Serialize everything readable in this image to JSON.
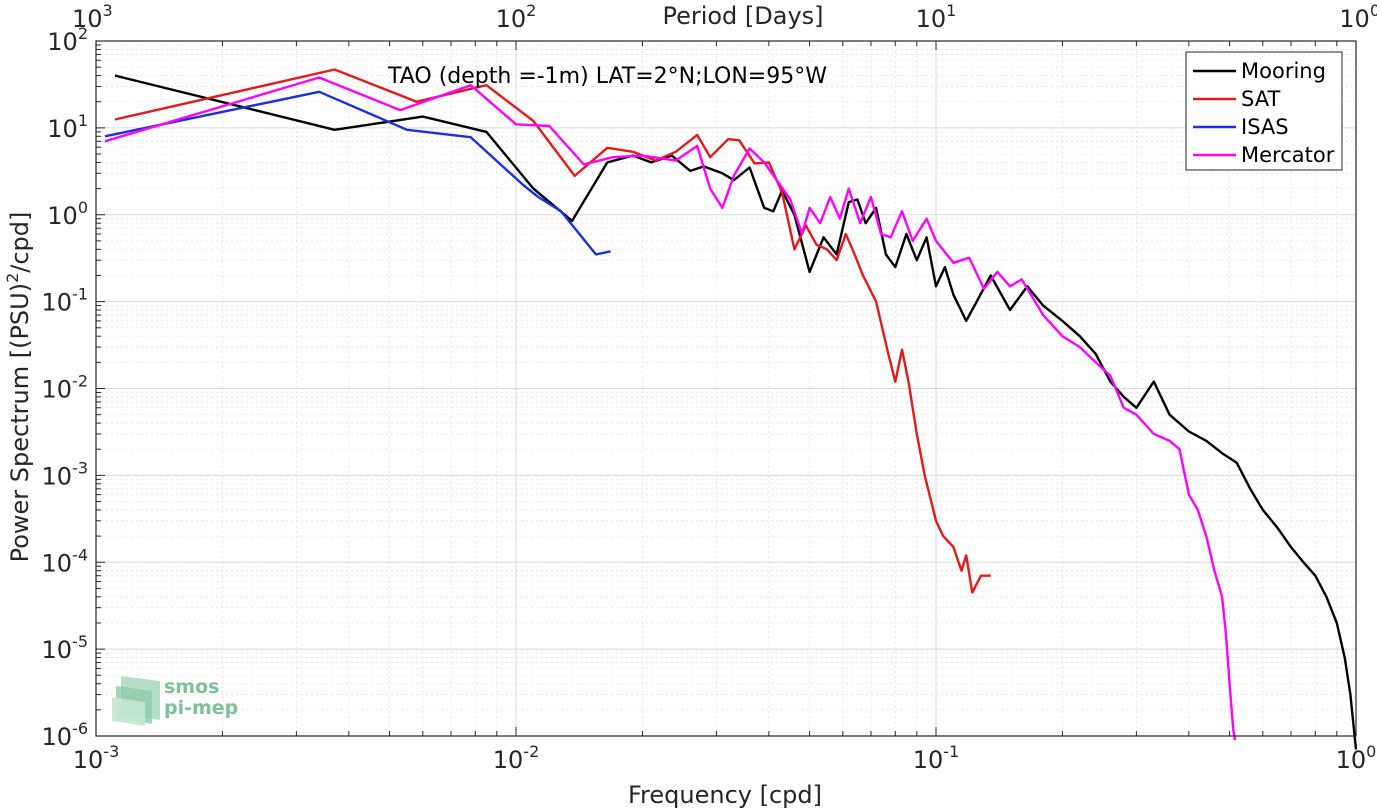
{
  "chart_data": {
    "type": "line",
    "x_scale": "log",
    "y_scale": "log",
    "xlim": [
      0.001,
      1
    ],
    "ylim": [
      1e-06,
      100
    ],
    "xlabel": "Frequency [cpd]",
    "ylabel": "Power Spectrum [(PSU)",
    "ylabel_sup": "2",
    "ylabel_tail": "/cpd]",
    "top_axis_label": "Period [Days]",
    "annotation": "TAO (depth =-1m) LAT=2°N;LON=95°W",
    "grid": true,
    "legend_position": "top-right",
    "x_ticks": [
      {
        "base": "10",
        "exp": "-3",
        "value": 0.001
      },
      {
        "base": "10",
        "exp": "-2",
        "value": 0.01
      },
      {
        "base": "10",
        "exp": "-1",
        "value": 0.1
      },
      {
        "base": "10",
        "exp": "0",
        "value": 1
      }
    ],
    "top_ticks": [
      {
        "base": "10",
        "exp": "3",
        "freq": 0.001
      },
      {
        "base": "10",
        "exp": "2",
        "freq": 0.01
      },
      {
        "base": "10",
        "exp": "1",
        "freq": 0.1
      },
      {
        "base": "10",
        "exp": "0",
        "freq": 1
      }
    ],
    "y_ticks": [
      {
        "base": "10",
        "exp": "2",
        "value": 100
      },
      {
        "base": "10",
        "exp": "1",
        "value": 10
      },
      {
        "base": "10",
        "exp": "0",
        "value": 1
      },
      {
        "base": "10",
        "exp": "-1",
        "value": 0.1
      },
      {
        "base": "10",
        "exp": "-2",
        "value": 0.01
      },
      {
        "base": "10",
        "exp": "-3",
        "value": 0.001
      },
      {
        "base": "10",
        "exp": "-4",
        "value": 0.0001
      },
      {
        "base": "10",
        "exp": "-5",
        "value": 1e-05
      },
      {
        "base": "10",
        "exp": "-6",
        "value": 1e-06
      }
    ],
    "series": [
      {
        "name": "Mooring",
        "color": "#000000",
        "points": [
          [
            0.00111,
            40
          ],
          [
            0.0037,
            9.5
          ],
          [
            0.006,
            13.5
          ],
          [
            0.0085,
            9
          ],
          [
            0.011,
            2
          ],
          [
            0.0136,
            0.85
          ],
          [
            0.0165,
            4
          ],
          [
            0.019,
            4.8
          ],
          [
            0.021,
            4.0
          ],
          [
            0.0235,
            4.8
          ],
          [
            0.026,
            3.2
          ],
          [
            0.028,
            3.6
          ],
          [
            0.031,
            3
          ],
          [
            0.033,
            2.5
          ],
          [
            0.036,
            3.5
          ],
          [
            0.039,
            1.2
          ],
          [
            0.041,
            1.1
          ],
          [
            0.043,
            1.9
          ],
          [
            0.046,
            1.0
          ],
          [
            0.05,
            0.22
          ],
          [
            0.054,
            0.55
          ],
          [
            0.058,
            0.35
          ],
          [
            0.062,
            1.4
          ],
          [
            0.065,
            1.5
          ],
          [
            0.068,
            0.8
          ],
          [
            0.072,
            1.2
          ],
          [
            0.076,
            0.35
          ],
          [
            0.08,
            0.25
          ],
          [
            0.085,
            0.6
          ],
          [
            0.09,
            0.3
          ],
          [
            0.095,
            0.55
          ],
          [
            0.1,
            0.15
          ],
          [
            0.105,
            0.25
          ],
          [
            0.11,
            0.12
          ],
          [
            0.118,
            0.06
          ],
          [
            0.125,
            0.1
          ],
          [
            0.135,
            0.2
          ],
          [
            0.15,
            0.08
          ],
          [
            0.165,
            0.15
          ],
          [
            0.18,
            0.09
          ],
          [
            0.2,
            0.06
          ],
          [
            0.22,
            0.04
          ],
          [
            0.24,
            0.025
          ],
          [
            0.26,
            0.012
          ],
          [
            0.28,
            0.008
          ],
          [
            0.3,
            0.006
          ],
          [
            0.33,
            0.012
          ],
          [
            0.36,
            0.005
          ],
          [
            0.4,
            0.0032
          ],
          [
            0.44,
            0.0025
          ],
          [
            0.48,
            0.0018
          ],
          [
            0.52,
            0.0014
          ],
          [
            0.56,
            0.0007
          ],
          [
            0.6,
            0.0004
          ],
          [
            0.65,
            0.00025
          ],
          [
            0.7,
            0.00015
          ],
          [
            0.75,
            0.0001
          ],
          [
            0.8,
            7e-05
          ],
          [
            0.85,
            4e-05
          ],
          [
            0.9,
            2e-05
          ],
          [
            0.94,
            8e-06
          ],
          [
            0.97,
            3e-06
          ],
          [
            1.0,
            7e-07
          ]
        ]
      },
      {
        "name": "SAT",
        "color": "#e31a1c",
        "points": [
          [
            0.00111,
            12.5
          ],
          [
            0.0037,
            47
          ],
          [
            0.0058,
            20
          ],
          [
            0.0085,
            31
          ],
          [
            0.011,
            12
          ],
          [
            0.0138,
            2.8
          ],
          [
            0.0165,
            5.9
          ],
          [
            0.019,
            5.3
          ],
          [
            0.0215,
            4.2
          ],
          [
            0.024,
            5.3
          ],
          [
            0.027,
            8.3
          ],
          [
            0.029,
            4.6
          ],
          [
            0.032,
            7.4
          ],
          [
            0.034,
            7.2
          ],
          [
            0.037,
            3.9
          ],
          [
            0.04,
            4
          ],
          [
            0.043,
            1.8
          ],
          [
            0.046,
            0.4
          ],
          [
            0.049,
            0.75
          ],
          [
            0.052,
            0.45
          ],
          [
            0.055,
            0.4
          ],
          [
            0.058,
            0.3
          ],
          [
            0.061,
            0.6
          ],
          [
            0.064,
            0.35
          ],
          [
            0.067,
            0.2
          ],
          [
            0.072,
            0.1
          ],
          [
            0.077,
            0.025
          ],
          [
            0.08,
            0.012
          ],
          [
            0.083,
            0.028
          ],
          [
            0.086,
            0.012
          ],
          [
            0.09,
            0.003
          ],
          [
            0.094,
            0.001
          ],
          [
            0.1,
            0.0003
          ],
          [
            0.104,
            0.0002
          ],
          [
            0.11,
            0.00015
          ],
          [
            0.115,
            8e-05
          ],
          [
            0.118,
            0.00012
          ],
          [
            0.122,
            4.5e-05
          ],
          [
            0.128,
            7e-05
          ],
          [
            0.135,
            7e-05
          ]
        ]
      },
      {
        "name": "ISAS",
        "color": "#1c2fdc",
        "points": [
          [
            0.00105,
            8
          ],
          [
            0.0034,
            26
          ],
          [
            0.0055,
            9.5
          ],
          [
            0.0078,
            7.8
          ],
          [
            0.0104,
            2.2
          ],
          [
            0.0113,
            1.6
          ],
          [
            0.0128,
            1.1
          ],
          [
            0.0155,
            0.35
          ],
          [
            0.0168,
            0.38
          ]
        ]
      },
      {
        "name": "Mercator",
        "color": "#ff00ff",
        "points": [
          [
            0.00105,
            7
          ],
          [
            0.0034,
            38
          ],
          [
            0.0053,
            16
          ],
          [
            0.0078,
            31
          ],
          [
            0.01,
            11
          ],
          [
            0.012,
            10.5
          ],
          [
            0.0145,
            3.8
          ],
          [
            0.017,
            4.6
          ],
          [
            0.02,
            4.8
          ],
          [
            0.024,
            4.2
          ],
          [
            0.027,
            6.2
          ],
          [
            0.029,
            2
          ],
          [
            0.031,
            1.2
          ],
          [
            0.033,
            2.8
          ],
          [
            0.036,
            5.8
          ],
          [
            0.039,
            4
          ],
          [
            0.042,
            2.4
          ],
          [
            0.045,
            1.5
          ],
          [
            0.048,
            0.6
          ],
          [
            0.05,
            1.2
          ],
          [
            0.053,
            0.8
          ],
          [
            0.056,
            1.6
          ],
          [
            0.059,
            0.9
          ],
          [
            0.062,
            2
          ],
          [
            0.066,
            0.8
          ],
          [
            0.07,
            1.6
          ],
          [
            0.074,
            0.6
          ],
          [
            0.078,
            0.55
          ],
          [
            0.083,
            1.1
          ],
          [
            0.088,
            0.5
          ],
          [
            0.095,
            0.9
          ],
          [
            0.1,
            0.5
          ],
          [
            0.11,
            0.28
          ],
          [
            0.12,
            0.32
          ],
          [
            0.13,
            0.14
          ],
          [
            0.14,
            0.22
          ],
          [
            0.15,
            0.15
          ],
          [
            0.16,
            0.18
          ],
          [
            0.18,
            0.07
          ],
          [
            0.2,
            0.04
          ],
          [
            0.22,
            0.03
          ],
          [
            0.24,
            0.02
          ],
          [
            0.26,
            0.014
          ],
          [
            0.28,
            0.006
          ],
          [
            0.3,
            0.005
          ],
          [
            0.33,
            0.003
          ],
          [
            0.36,
            0.0025
          ],
          [
            0.38,
            0.002
          ],
          [
            0.4,
            0.0006
          ],
          [
            0.42,
            0.0004
          ],
          [
            0.44,
            0.0002
          ],
          [
            0.46,
            8e-05
          ],
          [
            0.48,
            4e-05
          ],
          [
            0.49,
            1.5e-05
          ],
          [
            0.5,
            4e-06
          ],
          [
            0.51,
            1.2e-06
          ],
          [
            0.515,
            9e-07
          ]
        ]
      }
    ]
  },
  "logo": {
    "line1": "smos",
    "line2": "pi-mep"
  }
}
